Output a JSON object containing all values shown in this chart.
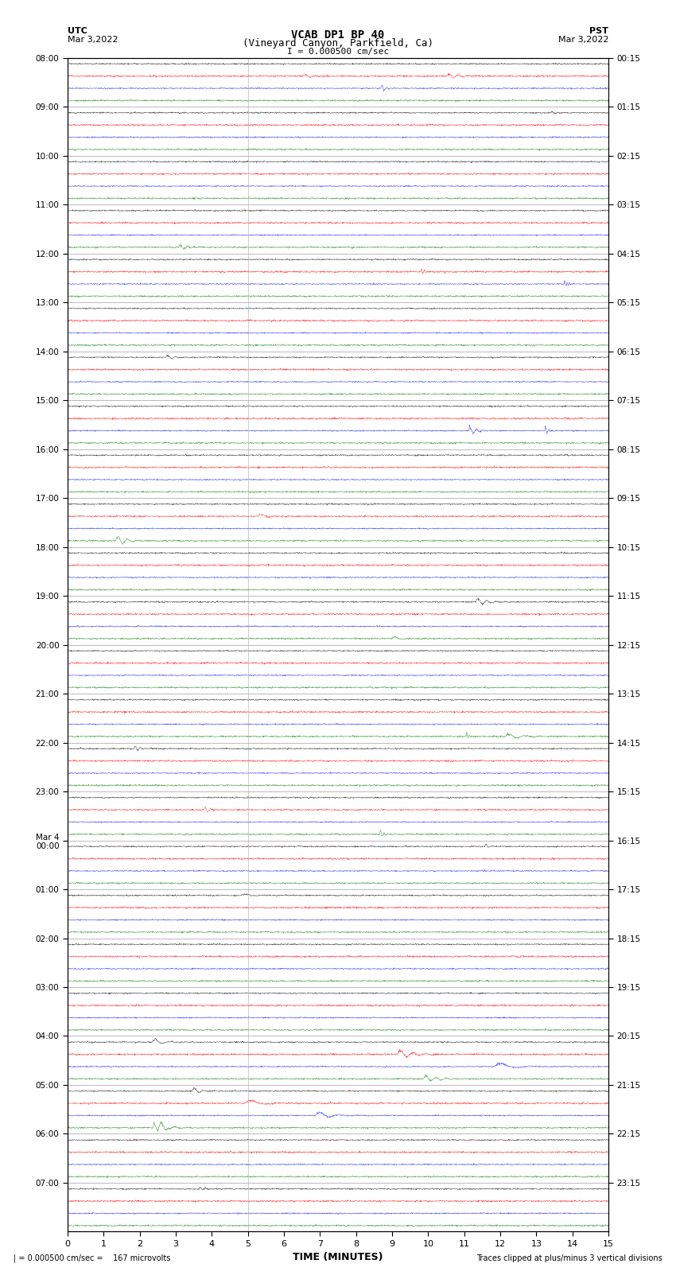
{
  "title_line1": "VCAB DP1 BP 40",
  "title_line2": "(Vineyard Canyon, Parkfield, Ca)",
  "scale_label": "I = 0.000500 cm/sec",
  "utc_label": "UTC",
  "utc_date": "Mar 3,2022",
  "pst_label": "PST",
  "pst_date": "Mar 3,2022",
  "bottom_left": "| = 0.000500 cm/sec =    167 microvolts",
  "bottom_right": "Traces clipped at plus/minus 3 vertical divisions",
  "xlabel": "TIME (MINUTES)",
  "trace_colors_cycle": [
    "black",
    "red",
    "blue",
    "green"
  ],
  "bg_color": "#ffffff",
  "fig_width": 8.5,
  "fig_height": 16.13,
  "dpi": 100,
  "right_ticks": [
    "00:15",
    "01:15",
    "02:15",
    "03:15",
    "04:15",
    "05:15",
    "06:15",
    "07:15",
    "08:15",
    "09:15",
    "10:15",
    "11:15",
    "12:15",
    "13:15",
    "14:15",
    "15:15",
    "16:15",
    "17:15",
    "18:15",
    "19:15",
    "20:15",
    "21:15",
    "22:15",
    "23:15"
  ],
  "noise_level": 0.035,
  "event_seed": 42
}
